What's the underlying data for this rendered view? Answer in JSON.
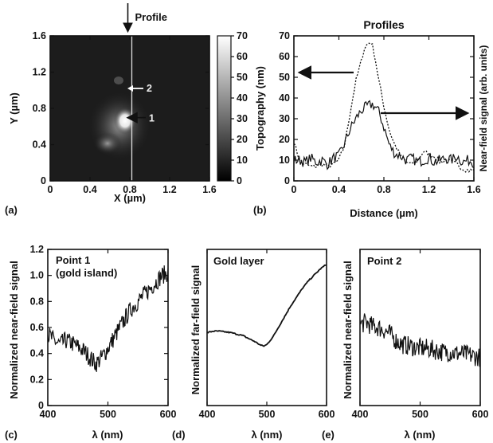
{
  "chart_data": [
    {
      "panel": "(a)",
      "type": "heatmap",
      "xlabel": "X (µm)",
      "ylabel": "Y (µm)",
      "xlim": [
        0,
        1.6
      ],
      "ylim": [
        0,
        1.6
      ],
      "x_ticks": [
        "0",
        "0.4",
        "0.8",
        "1.2",
        "1.6"
      ],
      "y_ticks": [
        "0",
        "0.4",
        "0.8",
        "1.2",
        "1.6"
      ],
      "colorbar": {
        "range": [
          0,
          70
        ],
        "ticks": [
          "0",
          "10",
          "20",
          "30",
          "40",
          "50",
          "60",
          "70"
        ]
      },
      "profile_line_x": 0.82,
      "features": [
        {
          "label": "1",
          "x": 0.8,
          "y": 0.68,
          "value": 70
        },
        {
          "label": "2",
          "x": 0.8,
          "y": 1.02,
          "value": 30
        }
      ],
      "annotation": "Profile"
    },
    {
      "panel": "(b)",
      "type": "line",
      "title": "Profiles",
      "xlabel": "Distance (µm)",
      "ylabel": "Topography (nm)",
      "ylabel_right": "Near-field signal (arb. units)",
      "xlim": [
        0,
        1.6
      ],
      "ylim": [
        0,
        70
      ],
      "x_ticks": [
        "0",
        "0.4",
        "0.8",
        "1.2",
        "1.6"
      ],
      "y_ticks": [
        "0",
        "10",
        "20",
        "30",
        "40",
        "50",
        "60",
        "70"
      ],
      "series": [
        {
          "style": "dotted",
          "x": [
            0,
            0.05,
            0.1,
            0.15,
            0.2,
            0.25,
            0.3,
            0.35,
            0.4,
            0.45,
            0.5,
            0.55,
            0.6,
            0.62,
            0.65,
            0.68,
            0.7,
            0.72,
            0.75,
            0.8,
            0.85,
            0.9,
            0.95,
            1.0,
            1.05,
            1.1,
            1.15,
            1.2,
            1.25,
            1.3,
            1.35,
            1.4,
            1.45,
            1.5,
            1.55,
            1.6
          ],
          "y": [
            19,
            10,
            8,
            7,
            7,
            8,
            7,
            8,
            10,
            17,
            33,
            48,
            58,
            63,
            66,
            67,
            65,
            60,
            50,
            36,
            24,
            17,
            12,
            9,
            8,
            10,
            14,
            13,
            12,
            9,
            10,
            9,
            8,
            6,
            5,
            5
          ]
        },
        {
          "style": "solid",
          "x": [
            0,
            0.05,
            0.1,
            0.15,
            0.2,
            0.25,
            0.3,
            0.35,
            0.4,
            0.45,
            0.5,
            0.55,
            0.6,
            0.65,
            0.7,
            0.75,
            0.8,
            0.85,
            0.9,
            0.95,
            1.0,
            1.05,
            1.1,
            1.15,
            1.2,
            1.25,
            1.3,
            1.35,
            1.4,
            1.45,
            1.5,
            1.55,
            1.6
          ],
          "y": [
            10,
            10,
            9,
            11,
            9,
            10,
            8,
            11,
            12,
            18,
            25,
            30,
            34,
            36,
            37,
            34,
            26,
            17,
            13,
            12,
            10,
            11,
            9,
            10,
            11,
            9,
            10,
            11,
            10,
            12,
            9,
            10,
            9
          ]
        }
      ]
    },
    {
      "panel": "(c)",
      "type": "line",
      "annotation": "Point 1\n(gold island)",
      "xlabel": "λ (nm)",
      "ylabel": "Normalized near-field signal",
      "xlim": [
        400,
        600
      ],
      "ylim": [
        0,
        1.2
      ],
      "x_ticks": [
        "400",
        "500",
        "600"
      ],
      "y_ticks": [
        "0",
        "0.2",
        "0.4",
        "0.6",
        "0.8",
        "1.0",
        "1.2"
      ],
      "series": [
        {
          "x": [
            400,
            410,
            420,
            430,
            440,
            450,
            460,
            470,
            480,
            490,
            500,
            510,
            520,
            530,
            540,
            550,
            560,
            570,
            580,
            590,
            600
          ],
          "y": [
            0.55,
            0.5,
            0.47,
            0.5,
            0.48,
            0.45,
            0.42,
            0.37,
            0.32,
            0.37,
            0.44,
            0.52,
            0.6,
            0.68,
            0.75,
            0.8,
            0.85,
            0.9,
            0.95,
            1.0,
            1.02
          ]
        }
      ]
    },
    {
      "panel": "(d)",
      "type": "line",
      "annotation": "Gold layer",
      "xlabel": "λ (nm)",
      "ylabel": "Normalized far-field signal",
      "xlim": [
        400,
        600
      ],
      "x_ticks": [
        "400",
        "500",
        "600"
      ],
      "series": [
        {
          "x": [
            400,
            410,
            420,
            430,
            440,
            450,
            460,
            470,
            480,
            490,
            495,
            500,
            510,
            520,
            530,
            540,
            550,
            560,
            570,
            580,
            590,
            600
          ],
          "y": [
            0.49,
            0.5,
            0.5,
            0.495,
            0.49,
            0.48,
            0.47,
            0.45,
            0.43,
            0.405,
            0.4,
            0.41,
            0.46,
            0.53,
            0.6,
            0.67,
            0.73,
            0.79,
            0.84,
            0.88,
            0.92,
            0.95
          ]
        }
      ]
    },
    {
      "panel": "(e)",
      "type": "line",
      "annotation": "Point 2",
      "xlabel": "λ (nm)",
      "ylabel": "Normalized near-field signal",
      "xlim": [
        400,
        600
      ],
      "x_ticks": [
        "400",
        "500",
        "600"
      ],
      "series": [
        {
          "x": [
            400,
            410,
            420,
            430,
            440,
            450,
            460,
            470,
            480,
            490,
            500,
            510,
            520,
            530,
            540,
            550,
            560,
            570,
            580,
            590,
            600
          ],
          "y": [
            0.62,
            0.64,
            0.61,
            0.6,
            0.58,
            0.55,
            0.5,
            0.47,
            0.46,
            0.45,
            0.44,
            0.44,
            0.43,
            0.42,
            0.41,
            0.41,
            0.4,
            0.4,
            0.39,
            0.38,
            0.37
          ]
        }
      ]
    }
  ]
}
